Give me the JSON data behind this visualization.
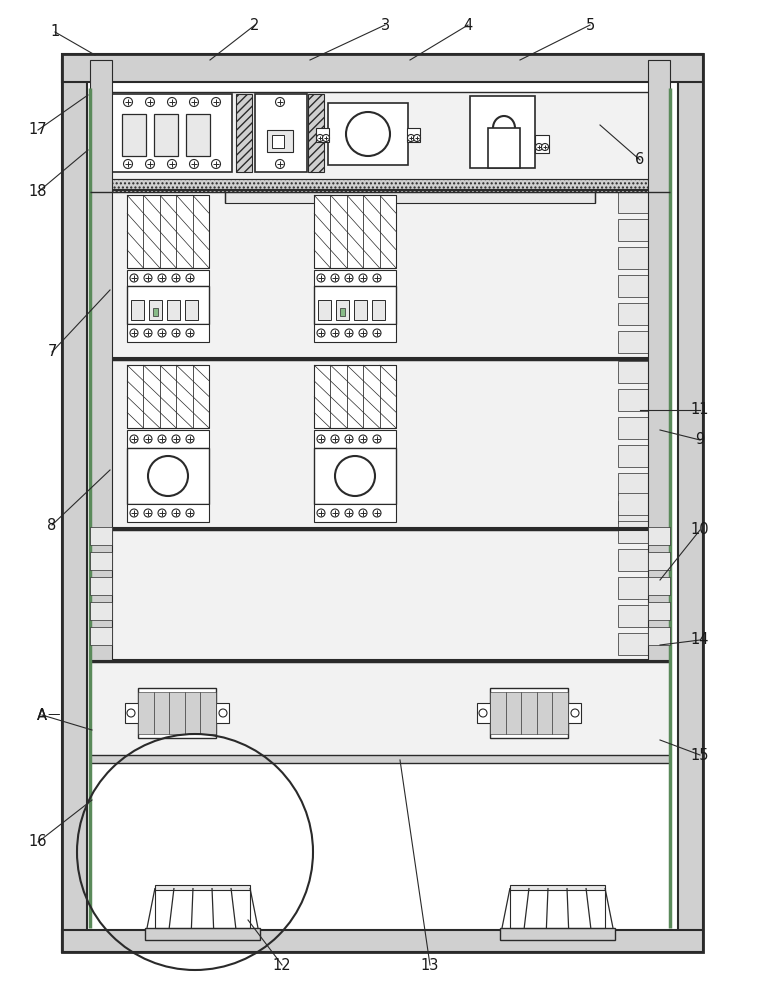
{
  "fig_width": 7.67,
  "fig_height": 10.0,
  "bg_color": "#ffffff",
  "lc": "#2a2a2a",
  "green": "#5a8a5a",
  "gray1": "#b8b8b8",
  "gray2": "#d0d0d0",
  "gray3": "#e8e8e8",
  "gray4": "#f2f2f2"
}
